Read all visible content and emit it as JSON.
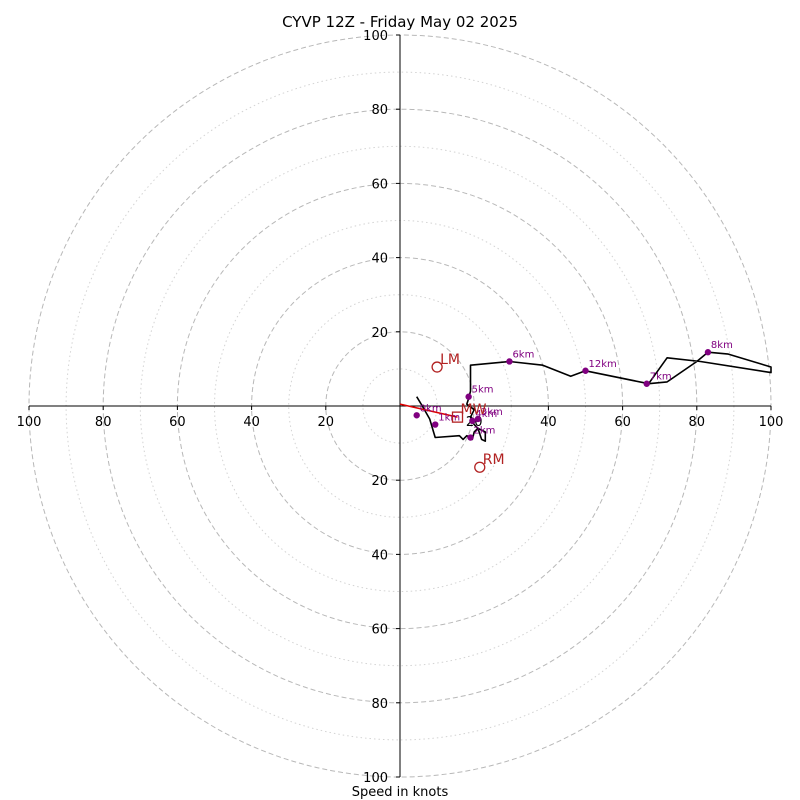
{
  "chart_data": {
    "type": "hodograph",
    "title": "CYVP 12Z - Friday May 02 2025",
    "xlabel": "Speed in knots",
    "range": [
      -100,
      100
    ],
    "ring_speeds_dashed": [
      20,
      40,
      60,
      80,
      100
    ],
    "ring_speeds_dotted": [
      10,
      30,
      50,
      70,
      90
    ],
    "x_tick_labels": [
      {
        "v": -100,
        "label": "100"
      },
      {
        "v": -80,
        "label": "80"
      },
      {
        "v": -60,
        "label": "60"
      },
      {
        "v": -40,
        "label": "40"
      },
      {
        "v": -20,
        "label": "20"
      },
      {
        "v": 20,
        "label": "20"
      },
      {
        "v": 40,
        "label": "40"
      },
      {
        "v": 60,
        "label": "60"
      },
      {
        "v": 80,
        "label": "80"
      },
      {
        "v": 100,
        "label": "100"
      }
    ],
    "y_tick_labels": [
      {
        "v": 100,
        "label": "100"
      },
      {
        "v": 80,
        "label": "80"
      },
      {
        "v": 60,
        "label": "60"
      },
      {
        "v": 40,
        "label": "40"
      },
      {
        "v": 20,
        "label": "20"
      },
      {
        "v": -20,
        "label": "20"
      },
      {
        "v": -40,
        "label": "40"
      },
      {
        "v": -60,
        "label": "60"
      },
      {
        "v": -80,
        "label": "80"
      },
      {
        "v": -100,
        "label": "100"
      }
    ],
    "hodograph_line": [
      [
        4.5,
        2.5
      ],
      [
        6,
        0
      ],
      [
        8,
        -3.5
      ],
      [
        9.5,
        -8.5
      ],
      [
        16,
        -8
      ],
      [
        17,
        -9
      ],
      [
        18,
        -8
      ],
      [
        19.5,
        -9
      ],
      [
        20,
        -7
      ],
      [
        21,
        -6
      ],
      [
        22,
        -9
      ],
      [
        23,
        -9.5
      ],
      [
        23,
        -7
      ],
      [
        21,
        -6
      ],
      [
        20,
        -5
      ],
      [
        19,
        -3
      ],
      [
        20,
        -1
      ],
      [
        18,
        0.5
      ],
      [
        18.5,
        2
      ],
      [
        19,
        4
      ],
      [
        19,
        8
      ],
      [
        19,
        11
      ],
      [
        29.5,
        12
      ],
      [
        38.5,
        11
      ],
      [
        46,
        8
      ],
      [
        50,
        9.5
      ],
      [
        67,
        6
      ],
      [
        72,
        13
      ],
      [
        81,
        12
      ],
      [
        100,
        9
      ],
      [
        100,
        10.5
      ],
      [
        88.5,
        14
      ],
      [
        83,
        14.5
      ],
      [
        80,
        12
      ],
      [
        72,
        6.5
      ],
      [
        67,
        6
      ]
    ],
    "km_markers": [
      {
        "label": "0km",
        "u": 4.5,
        "v": -2.5
      },
      {
        "label": "1km",
        "u": 9.5,
        "v": -5
      },
      {
        "label": "2km",
        "u": 19,
        "v": -8.5
      },
      {
        "label": "3km",
        "u": 21,
        "v": -3.5
      },
      {
        "label": "4km",
        "u": 19.5,
        "v": -4
      },
      {
        "label": "5km",
        "u": 18.5,
        "v": 2.5
      },
      {
        "label": "6km",
        "u": 29.5,
        "v": 12
      },
      {
        "label": "7km",
        "u": 66.5,
        "v": 6
      },
      {
        "label": "8km",
        "u": 83,
        "v": 14.5
      },
      {
        "label": "12km",
        "u": 50,
        "v": 9.5
      }
    ],
    "storm_motion": {
      "LM": {
        "label": "LM",
        "u": 10,
        "v": 10.5
      },
      "RM": {
        "label": "RM",
        "u": 21.5,
        "v": -16.5
      },
      "MW": {
        "label": "MW",
        "u": 15.5,
        "v": -3
      }
    },
    "shear_vector": [
      [
        0,
        0.5
      ],
      [
        15.5,
        -3
      ]
    ],
    "colors": {
      "hodograph": "#000000",
      "km_marker": "#800080",
      "storm_motion": "#b22222",
      "shear_vector": "#dd0000",
      "ring_dashed": "#b8b8b8",
      "ring_dotted": "#d3d3d3",
      "axis": "#000000"
    }
  }
}
